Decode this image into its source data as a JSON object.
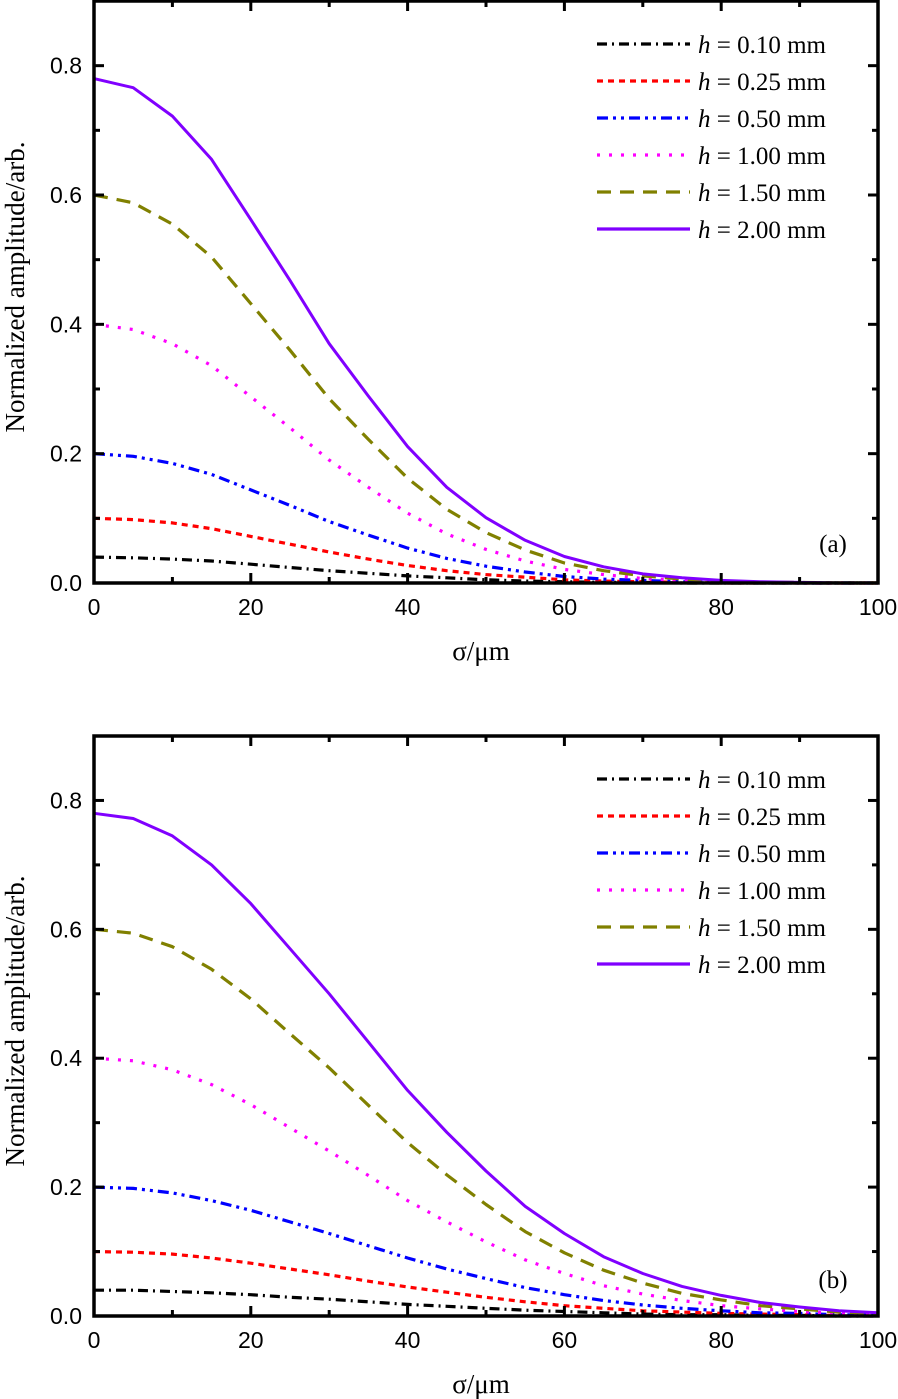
{
  "chart_data": [
    {
      "type": "line",
      "panel_label": "(a)",
      "xlabel": "σ/μm",
      "ylabel": "Normalized amplitude/arb.",
      "xlim": [
        0,
        100
      ],
      "ylim": [
        0,
        0.9
      ],
      "x_ticks": [
        "0",
        "20",
        "40",
        "60",
        "80",
        "100"
      ],
      "y_ticks": [
        "0.0",
        "0.2",
        "0.4",
        "0.6",
        "0.8"
      ],
      "grid": false,
      "legend_position": "top-right",
      "x": [
        0,
        5,
        10,
        15,
        20,
        25,
        30,
        35,
        40,
        45,
        50,
        55,
        60,
        65,
        70,
        75,
        80,
        85,
        90,
        95,
        100
      ],
      "series": [
        {
          "name": "h = 0.10 mm",
          "h_italic": "h",
          "rest": " = 0.10 mm",
          "color": "#000000",
          "style": "dash-dot",
          "values": [
            0.04,
            0.039,
            0.037,
            0.034,
            0.029,
            0.024,
            0.019,
            0.015,
            0.011,
            0.008,
            0.005,
            0.003,
            0.002,
            0.001,
            0.001,
            0.0,
            0.0,
            0.0,
            0.0,
            0.0,
            0.0
          ]
        },
        {
          "name": "h = 0.25 mm",
          "h_italic": "h",
          "rest": " = 0.25 mm",
          "color": "#ff0000",
          "style": "short-dash",
          "values": [
            0.1,
            0.098,
            0.093,
            0.084,
            0.072,
            0.06,
            0.048,
            0.037,
            0.027,
            0.019,
            0.013,
            0.009,
            0.005,
            0.003,
            0.002,
            0.001,
            0.0,
            0.0,
            0.0,
            0.0,
            0.0
          ]
        },
        {
          "name": "h = 0.50 mm",
          "h_italic": "h",
          "rest": " = 0.50 mm",
          "color": "#0000ff",
          "style": "dash-dot-dot",
          "values": [
            0.2,
            0.196,
            0.185,
            0.168,
            0.144,
            0.12,
            0.095,
            0.074,
            0.054,
            0.038,
            0.026,
            0.017,
            0.01,
            0.006,
            0.004,
            0.002,
            0.001,
            0.0,
            0.0,
            0.0,
            0.0
          ]
        },
        {
          "name": "h = 1.00 mm",
          "h_italic": "h",
          "rest": " = 1.00 mm",
          "color": "#ff00ff",
          "style": "dot",
          "values": [
            0.4,
            0.392,
            0.37,
            0.336,
            0.288,
            0.24,
            0.19,
            0.148,
            0.108,
            0.076,
            0.052,
            0.034,
            0.021,
            0.013,
            0.007,
            0.004,
            0.002,
            0.001,
            0.0,
            0.0,
            0.0
          ]
        },
        {
          "name": "h = 1.50 mm",
          "h_italic": "h",
          "rest": " = 1.50 mm",
          "color": "#808000",
          "style": "dash",
          "values": [
            0.6,
            0.588,
            0.555,
            0.504,
            0.432,
            0.36,
            0.285,
            0.222,
            0.162,
            0.114,
            0.078,
            0.051,
            0.031,
            0.019,
            0.011,
            0.006,
            0.003,
            0.001,
            0.001,
            0.0,
            0.0
          ]
        },
        {
          "name": "h = 2.00 mm",
          "h_italic": "h",
          "rest": " = 2.00 mm",
          "color": "#8000ff",
          "style": "solid",
          "values": [
            0.78,
            0.766,
            0.722,
            0.655,
            0.562,
            0.468,
            0.37,
            0.289,
            0.211,
            0.148,
            0.101,
            0.066,
            0.041,
            0.025,
            0.014,
            0.008,
            0.004,
            0.002,
            0.001,
            0.0,
            0.0
          ]
        }
      ]
    },
    {
      "type": "line",
      "panel_label": "(b)",
      "xlabel": "σ/μm",
      "ylabel": "Normalized amplitude/arb.",
      "xlim": [
        0,
        100
      ],
      "ylim": [
        0,
        0.9
      ],
      "x_ticks": [
        "0",
        "20",
        "40",
        "60",
        "80",
        "100"
      ],
      "y_ticks": [
        "0.0",
        "0.2",
        "0.4",
        "0.6",
        "0.8"
      ],
      "grid": false,
      "legend_position": "top-right",
      "x": [
        0,
        5,
        10,
        15,
        20,
        25,
        30,
        35,
        40,
        45,
        50,
        55,
        60,
        65,
        70,
        75,
        80,
        85,
        90,
        95,
        100
      ],
      "series": [
        {
          "name": "h = 0.10 mm",
          "h_italic": "h",
          "rest": " = 0.10 mm",
          "color": "#000000",
          "style": "dash-dot",
          "values": [
            0.04,
            0.04,
            0.038,
            0.036,
            0.033,
            0.029,
            0.026,
            0.022,
            0.018,
            0.015,
            0.012,
            0.009,
            0.007,
            0.005,
            0.003,
            0.002,
            0.002,
            0.001,
            0.001,
            0.0,
            0.0
          ]
        },
        {
          "name": "h = 0.25 mm",
          "h_italic": "h",
          "rest": " = 0.25 mm",
          "color": "#ff0000",
          "style": "short-dash",
          "values": [
            0.1,
            0.099,
            0.096,
            0.09,
            0.082,
            0.073,
            0.064,
            0.054,
            0.045,
            0.037,
            0.029,
            0.022,
            0.016,
            0.012,
            0.008,
            0.006,
            0.004,
            0.003,
            0.002,
            0.001,
            0.001
          ]
        },
        {
          "name": "h = 0.50 mm",
          "h_italic": "h",
          "rest": " = 0.50 mm",
          "color": "#0000ff",
          "style": "dash-dot-dot",
          "values": [
            0.2,
            0.198,
            0.191,
            0.179,
            0.164,
            0.146,
            0.128,
            0.109,
            0.09,
            0.073,
            0.058,
            0.044,
            0.033,
            0.024,
            0.017,
            0.012,
            0.008,
            0.005,
            0.004,
            0.002,
            0.001
          ]
        },
        {
          "name": "h = 1.00 mm",
          "h_italic": "h",
          "rest": " = 1.00 mm",
          "color": "#ff00ff",
          "style": "dot",
          "values": [
            0.4,
            0.396,
            0.382,
            0.359,
            0.328,
            0.292,
            0.256,
            0.218,
            0.179,
            0.146,
            0.115,
            0.087,
            0.066,
            0.047,
            0.034,
            0.024,
            0.016,
            0.011,
            0.007,
            0.004,
            0.003
          ]
        },
        {
          "name": "h = 1.50 mm",
          "h_italic": "h",
          "rest": " = 1.50 mm",
          "color": "#808000",
          "style": "dash",
          "values": [
            0.6,
            0.594,
            0.573,
            0.538,
            0.492,
            0.438,
            0.385,
            0.327,
            0.269,
            0.219,
            0.173,
            0.131,
            0.098,
            0.071,
            0.051,
            0.035,
            0.025,
            0.016,
            0.011,
            0.006,
            0.004
          ]
        },
        {
          "name": "h = 2.00 mm",
          "h_italic": "h",
          "rest": " = 2.00 mm",
          "color": "#8000ff",
          "style": "solid",
          "values": [
            0.78,
            0.772,
            0.745,
            0.7,
            0.64,
            0.57,
            0.5,
            0.425,
            0.35,
            0.285,
            0.225,
            0.17,
            0.128,
            0.092,
            0.066,
            0.046,
            0.032,
            0.021,
            0.014,
            0.008,
            0.005
          ]
        }
      ]
    }
  ]
}
